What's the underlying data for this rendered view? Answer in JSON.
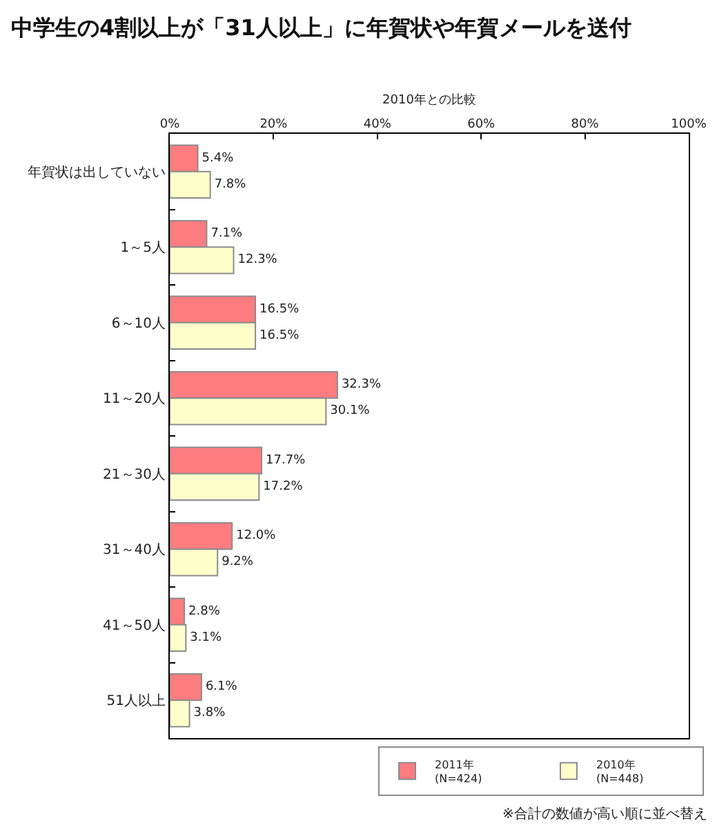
{
  "chart_data": {
    "type": "bar",
    "orientation": "horizontal",
    "title": "中学生の4割以上が「31人以上」に年賀状や年賀メールを送付",
    "xlabel": "2010年との比較",
    "categories": [
      "年賀状は出していない",
      "1～5人",
      "6～10人",
      "11～20人",
      "21～30人",
      "31～40人",
      "41～50人",
      "51人以上"
    ],
    "series": [
      {
        "name": "2011年\n(N=424)",
        "color": "#ff7c80",
        "values": [
          5.4,
          7.1,
          16.5,
          32.3,
          17.7,
          12.0,
          2.8,
          6.1
        ],
        "value_labels": [
          "5.4%",
          "7.1%",
          "16.5%",
          "32.3%",
          "17.7%",
          "12.0%",
          "2.8%",
          "6.1%"
        ]
      },
      {
        "name": "2010年\n(N=448)",
        "color": "#ffffcc",
        "values": [
          7.8,
          12.3,
          16.5,
          30.1,
          17.2,
          9.2,
          3.1,
          3.8
        ],
        "value_labels": [
          "7.8%",
          "12.3%",
          "16.5%",
          "30.1%",
          "17.2%",
          "9.2%",
          "3.1%",
          "3.8%"
        ]
      }
    ],
    "xlim": [
      0,
      100
    ],
    "xticks": [
      {
        "value": 0,
        "label": "0%"
      },
      {
        "value": 20,
        "label": "20%"
      },
      {
        "value": 40,
        "label": "40%"
      },
      {
        "value": 60,
        "label": "60%"
      },
      {
        "value": 80,
        "label": "80%"
      },
      {
        "value": 100,
        "label": "100%"
      }
    ],
    "legend": "bottom",
    "annotations": [
      "※合計の数値が高い順に並べ替え"
    ]
  }
}
